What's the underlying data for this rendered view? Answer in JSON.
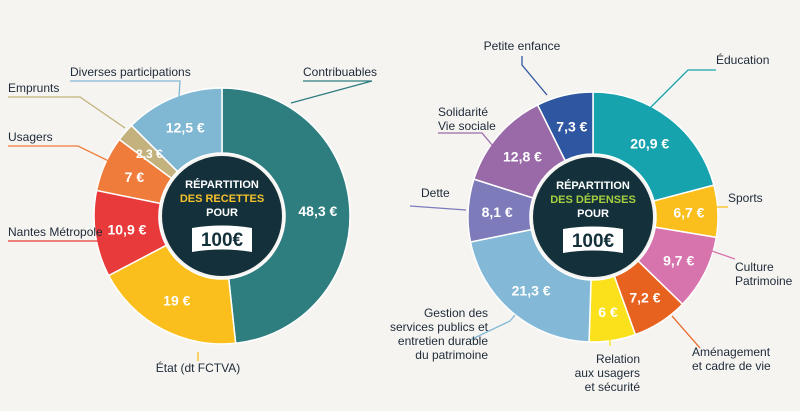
{
  "chart_data": [
    {
      "type": "pie",
      "title_lines": [
        "RÉPARTITION",
        "DES RECETTES",
        "POUR"
      ],
      "badge": "100€",
      "currency": "€",
      "categories": [
        "Contribuables",
        "État (dt FCTVA)",
        "Nantes Métropole",
        "Usagers",
        "Emprunts",
        "Diverses participations"
      ],
      "values": [
        48.3,
        19,
        10.9,
        7,
        2.3,
        12.5
      ],
      "value_labels": [
        "48,3 €",
        "19 €",
        "10,9 €",
        "7 €",
        "2,3 €",
        "12,5 €"
      ],
      "colors": [
        "#2e7d7f",
        "#fbbf1d",
        "#e83a3a",
        "#f07c3c",
        "#c3b27e",
        "#80b8d4"
      ]
    },
    {
      "type": "pie",
      "title_lines": [
        "RÉPARTITION",
        "DES DÉPENSES",
        "POUR"
      ],
      "badge": "100€",
      "currency": "€",
      "categories": [
        "Éducation",
        "Sports",
        "Culture\nPatrimoine",
        "Aménagement\net cadre de vie",
        "Relation\naux usagers\net sécurité",
        "Gestion des\nservices publics et\nentretien durable\ndu patrimoine",
        "Dette",
        "Solidarité\nVie sociale",
        "Petite enfance"
      ],
      "values": [
        20.9,
        6.7,
        9.7,
        7.2,
        6,
        21.3,
        8.1,
        12.8,
        7.3
      ],
      "value_labels": [
        "20,9 €",
        "6,7 €",
        "9,7 €",
        "7,2 €",
        "6 €",
        "21,3 €",
        "8,1 €",
        "12,8 €",
        "7,3 €"
      ],
      "colors": [
        "#16a3ad",
        "#fbbf1d",
        "#d773ad",
        "#e8621f",
        "#fbe11b",
        "#83b9d6",
        "#7e7bbb",
        "#9a6aa8",
        "#2f56a0"
      ]
    }
  ]
}
